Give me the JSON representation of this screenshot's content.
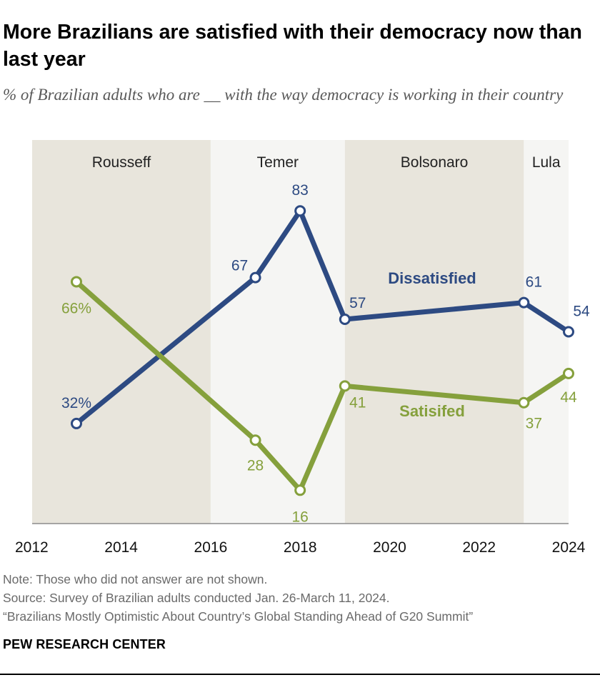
{
  "title": "More Brazilians are satisfied with their democracy now than last year",
  "subtitle": "% of Brazilian adults who are __ with the way democracy is working in their country",
  "notes": [
    "Note: Those who did not answer are not shown.",
    "Source: Survey of Brazilian adults conducted Jan. 26-March 11, 2024.",
    "“Brazilians Mostly Optimistic About Country’s Global Standing Ahead of G20 Summit”"
  ],
  "brand": "PEW RESEARCH CENTER",
  "colors": {
    "dissatisfied": "#2d4a82",
    "satisfied": "#85a03c",
    "band_dark": "#e8e5dc",
    "band_light": "#f5f5f3"
  },
  "chart_data": {
    "type": "line",
    "x_ticks": [
      2012,
      2014,
      2016,
      2018,
      2020,
      2022,
      2024
    ],
    "xlim": [
      2012,
      2024
    ],
    "ylim": [
      8,
      100
    ],
    "grid": false,
    "periods": [
      {
        "label": "Rousseff",
        "start": 2012,
        "end": 2016,
        "shade": "dark"
      },
      {
        "label": "Temer",
        "start": 2016,
        "end": 2019,
        "shade": "light"
      },
      {
        "label": "Bolsonaro",
        "start": 2019,
        "end": 2023,
        "shade": "dark"
      },
      {
        "label": "Lula",
        "start": 2023,
        "end": 2024,
        "shade": "light"
      }
    ],
    "series": [
      {
        "name": "Dissatisfied",
        "color": "#2d4a82",
        "points": [
          {
            "x": 2013,
            "y": 32,
            "label": "32%"
          },
          {
            "x": 2017,
            "y": 67,
            "label": "67"
          },
          {
            "x": 2018,
            "y": 83,
            "label": "83"
          },
          {
            "x": 2019,
            "y": 57,
            "label": "57"
          },
          {
            "x": 2023,
            "y": 61,
            "label": "61"
          },
          {
            "x": 2024,
            "y": 54,
            "label": "54"
          }
        ]
      },
      {
        "name": "Satisifed",
        "color": "#85a03c",
        "points": [
          {
            "x": 2013,
            "y": 66,
            "label": "66%"
          },
          {
            "x": 2017,
            "y": 28,
            "label": "28"
          },
          {
            "x": 2018,
            "y": 16,
            "label": "16"
          },
          {
            "x": 2019,
            "y": 41,
            "label": "41"
          },
          {
            "x": 2023,
            "y": 37,
            "label": "37"
          },
          {
            "x": 2024,
            "y": 44,
            "label": "44"
          }
        ]
      }
    ]
  }
}
